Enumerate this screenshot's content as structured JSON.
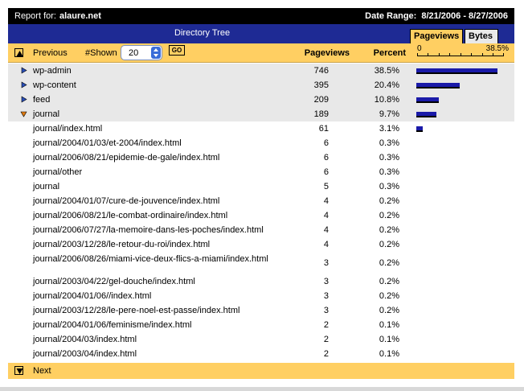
{
  "header": {
    "report_label": "Report for:",
    "site": "alaure.net",
    "date_label": "Date Range:",
    "date_value": "8/21/2006 - 8/27/2006"
  },
  "strip": {
    "title": "Directory Tree",
    "tab_pageviews": "Pageviews",
    "tab_bytes": "Bytes"
  },
  "controls": {
    "previous": "Previous",
    "shown_label": "#Shown",
    "shown_value": "20",
    "go": "GO",
    "next": "Next"
  },
  "columns": {
    "pageviews": "Pageviews",
    "percent": "Percent",
    "scale_min": "0",
    "scale_max": "38.5%"
  },
  "rows": [
    {
      "name": "wp-admin",
      "pageviews": "746",
      "percent": "38.5%",
      "bar": 1.0,
      "folder": "collapsed"
    },
    {
      "name": "wp-content",
      "pageviews": "395",
      "percent": "20.4%",
      "bar": 0.53,
      "folder": "collapsed"
    },
    {
      "name": "feed",
      "pageviews": "209",
      "percent": "10.8%",
      "bar": 0.28,
      "folder": "collapsed"
    },
    {
      "name": "journal",
      "pageviews": "189",
      "percent": "9.7%",
      "bar": 0.25,
      "folder": "expanded"
    },
    {
      "name": "journal/index.html",
      "pageviews": "61",
      "percent": "3.1%",
      "bar": 0.08
    },
    {
      "name": "journal/2004/01/03/et-2004/index.html",
      "pageviews": "6",
      "percent": "0.3%"
    },
    {
      "name": "journal/2006/08/21/epidemie-de-gale/index.html",
      "pageviews": "6",
      "percent": "0.3%"
    },
    {
      "name": "journal/other",
      "pageviews": "6",
      "percent": "0.3%"
    },
    {
      "name": "journal",
      "pageviews": "5",
      "percent": "0.3%"
    },
    {
      "name": "journal/2004/01/07/cure-de-jouvence/index.html",
      "pageviews": "4",
      "percent": "0.2%"
    },
    {
      "name": "journal/2006/08/21/le-combat-ordinaire/index.html",
      "pageviews": "4",
      "percent": "0.2%"
    },
    {
      "name": "journal/2006/07/27/la-memoire-dans-les-poches/index.html",
      "pageviews": "4",
      "percent": "0.2%"
    },
    {
      "name": "journal/2003/12/28/le-retour-du-roi/index.html",
      "pageviews": "4",
      "percent": "0.2%"
    },
    {
      "name": "journal/2006/08/26/miami-vice-deux-flics-a-miami/index.html",
      "pageviews": "3",
      "percent": "0.2%",
      "tall": true
    },
    {
      "name": "journal/2003/04/22/gel-douche/index.html",
      "pageviews": "3",
      "percent": "0.2%"
    },
    {
      "name": "journal/2004/01/06//index.html",
      "pageviews": "3",
      "percent": "0.2%"
    },
    {
      "name": "journal/2003/12/28/le-pere-noel-est-passe/index.html",
      "pageviews": "3",
      "percent": "0.2%"
    },
    {
      "name": "journal/2004/01/06/feminisme/index.html",
      "pageviews": "2",
      "percent": "0.1%"
    },
    {
      "name": "journal/2004/03/index.html",
      "pageviews": "2",
      "percent": "0.1%"
    },
    {
      "name": "journal/2003/04/index.html",
      "pageviews": "2",
      "percent": "0.1%"
    }
  ],
  "colors": {
    "accent_yellow": "#ffcf62",
    "strip_blue": "#1e2a94",
    "bar_blue": "#1a1aa8",
    "row_grey": "#e8e8e8"
  }
}
